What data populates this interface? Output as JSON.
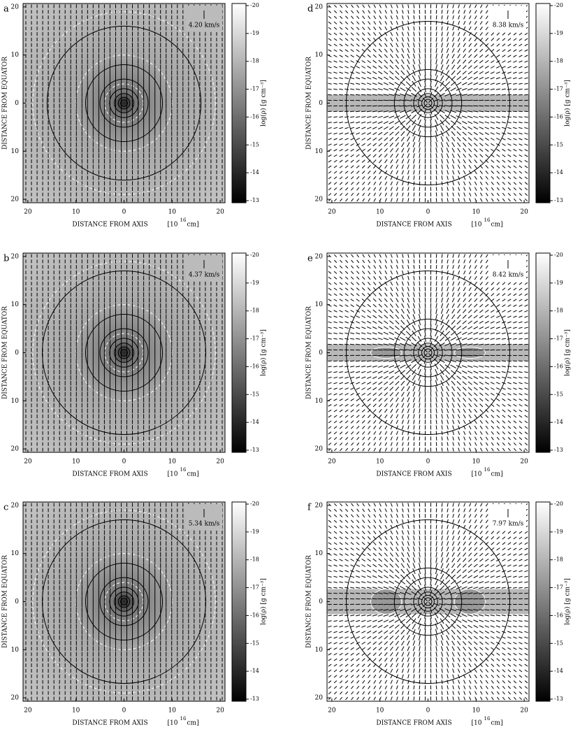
{
  "panels": [
    {
      "label": "a",
      "velocity": "4.20 km/s"
    },
    {
      "label": "d",
      "velocity": "8.38 km/s"
    },
    {
      "label": "b",
      "velocity": "4.37 km/s"
    },
    {
      "label": "e",
      "velocity": "8.42 km/s"
    },
    {
      "label": "c",
      "velocity": "5.34 km/s"
    },
    {
      "label": "f",
      "velocity": "7.97 km/s"
    }
  ],
  "x_axis_label": "DISTANCE FROM AXIS",
  "x_unit_open": "[10",
  "x_unit_power": "16",
  "x_unit_close": "cm]",
  "y_axis_label": "DISTANCE FROM EQUATOR",
  "colorbar_label": "log(ρ)  [g cm⁻³]",
  "x_ticks": [
    "20",
    "10",
    "0",
    "10",
    "20"
  ],
  "y_ticks": [
    "20",
    "10",
    "0",
    "10",
    "20"
  ],
  "colorbar_ticks": [
    "-20",
    "-19",
    "-18",
    "-17",
    "-16",
    "-15",
    "-14",
    "-13"
  ]
}
